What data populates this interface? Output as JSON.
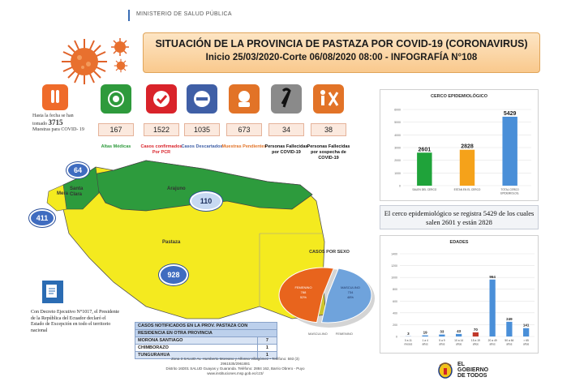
{
  "header": {
    "ministry": "MINISTERIO DE SALUD PÚBLICA",
    "title_line1": "SITUACIÓN DE LA PROVINCIA DE PASTAZA POR COVID-19 (CORONAVIRUS)",
    "title_line2": "Inicio 25/03/2020-Corte 06/08/2020 08:00 - INFOGRAFÍA N°108"
  },
  "tests": {
    "prefix": "Hasta la fecha se han tomado",
    "count": "3715",
    "suffix": "Muestras para COVID- 19"
  },
  "stats": [
    {
      "value": "167",
      "label": "Altas Médicas",
      "color": "#2e9a3c",
      "label_color": "#2e9a3c",
      "icon": "medical-discharge-icon"
    },
    {
      "value": "1522",
      "label": "Casos confirmados Por PCR",
      "color": "#d9232a",
      "label_color": "#d9232a",
      "icon": "checkmark-icon"
    },
    {
      "value": "1035",
      "label": "Casos Descartados",
      "color": "#3f5fa6",
      "label_color": "#3f5fa6",
      "icon": "minus-icon"
    },
    {
      "value": "673",
      "label": "Muestras Pendientes",
      "color": "#e27327",
      "label_color": "#e27327",
      "icon": "lab-sample-icon"
    },
    {
      "value": "34",
      "label": "Personas Fallecidas por COVID-19",
      "color": "#8a8a8a",
      "label_color": "#111111",
      "icon": "mourning-ribbon-icon"
    },
    {
      "value": "38",
      "label": "Personas Fallecidas por sospecha de COVID-19",
      "color": "#e27327",
      "label_color": "#111111",
      "icon": "persons-cross-icon"
    }
  ],
  "map": {
    "places": [
      "Mera",
      "Santa Clara",
      "Arajuno",
      "Pastaza"
    ],
    "bubbles": [
      "64",
      "411",
      "110",
      "928"
    ]
  },
  "decree": "Con Decreto Ejecutivo N°1017, el Presidente de la República del Ecuador declaró el Estado de Excepción en todo el territorio nacional",
  "sex_chart": {
    "title": "CASOS POR SEXO",
    "female_label": "FEMENINO",
    "female_value": "788",
    "female_pct": "52%",
    "male_label": "MASCULINO",
    "male_value": "734",
    "male_pct": "48%",
    "female_color": "#e8641d",
    "male_color": "#6fa3dc",
    "legend_male": "MASCULINO",
    "legend_female": "FEMENINO"
  },
  "residence_table": {
    "header_line1": "CASOS NOTIFICADOS EN LA PROV. PASTAZA CON",
    "header_line2": "RESIDENCIA EN OTRA PROVINCIA",
    "rows": [
      {
        "province": "MORONA SANTIAGO",
        "count": "7"
      },
      {
        "province": "CHIMBORAZO",
        "count": "1"
      },
      {
        "province": "TUNGURAHUA",
        "count": "1"
      }
    ]
  },
  "footer": {
    "line1": "Zona 3 SALUD Av. Humberto Moreano y Alfonso Villagómez • Teléfono: 593 (3)",
    "line2": "2961535/2961881",
    "line3": "Distrito 16D01 SALUD Guayas y Guaranda. Teléfono: 2884 162, Barrio Obrero - Puyo",
    "line4": "www.instituciones.msp.gob.ec/cz3/"
  },
  "cerco": {
    "title": "CERCO EPIDEMIOLÓGICO",
    "message": "El cerco epidemiológico se registra 5429 de los cuales salen 2601 y están 2828"
  },
  "edades": {
    "title": "EDADES"
  },
  "logo": {
    "line1": "EL",
    "line2": "GOBIERNO",
    "line3": "DE TODOS"
  },
  "chart_data": [
    {
      "type": "bar",
      "title": "CERCO EPIDEMIOLÓGICO",
      "categories": [
        "SALEN DEL CERCO",
        "ESTAN EN EL CERCO",
        "TOTAL CERCO EPIDEMIOLOG."
      ],
      "values": [
        2601,
        2828,
        5429
      ],
      "colors": [
        "#1fa33a",
        "#f5a21a",
        "#4a8fd8"
      ],
      "yticks": [
        0,
        1000,
        2000,
        3000,
        4000,
        5000,
        6000
      ],
      "ylim": [
        0,
        6000
      ],
      "grid": true
    },
    {
      "type": "bar",
      "title": "EDADES",
      "categories": [
        "0 a 11 meses",
        "1 a 4 años",
        "5 a 9 años",
        "10 a 14 años",
        "15 a 19 años",
        "20 a 49 años",
        "50 a 64 años",
        "> 65 años"
      ],
      "values": [
        3,
        19,
        33,
        43,
        70,
        964,
        249,
        141
      ],
      "colors": [
        "#4a8fd8",
        "#4a8fd8",
        "#4a8fd8",
        "#4a8fd8",
        "#c0392b",
        "#4a8fd8",
        "#4a8fd8",
        "#4a8fd8"
      ],
      "yticks": [
        0,
        200,
        400,
        600,
        800,
        1000,
        1200,
        1400
      ],
      "ylim": [
        0,
        1400
      ],
      "grid": true
    }
  ]
}
